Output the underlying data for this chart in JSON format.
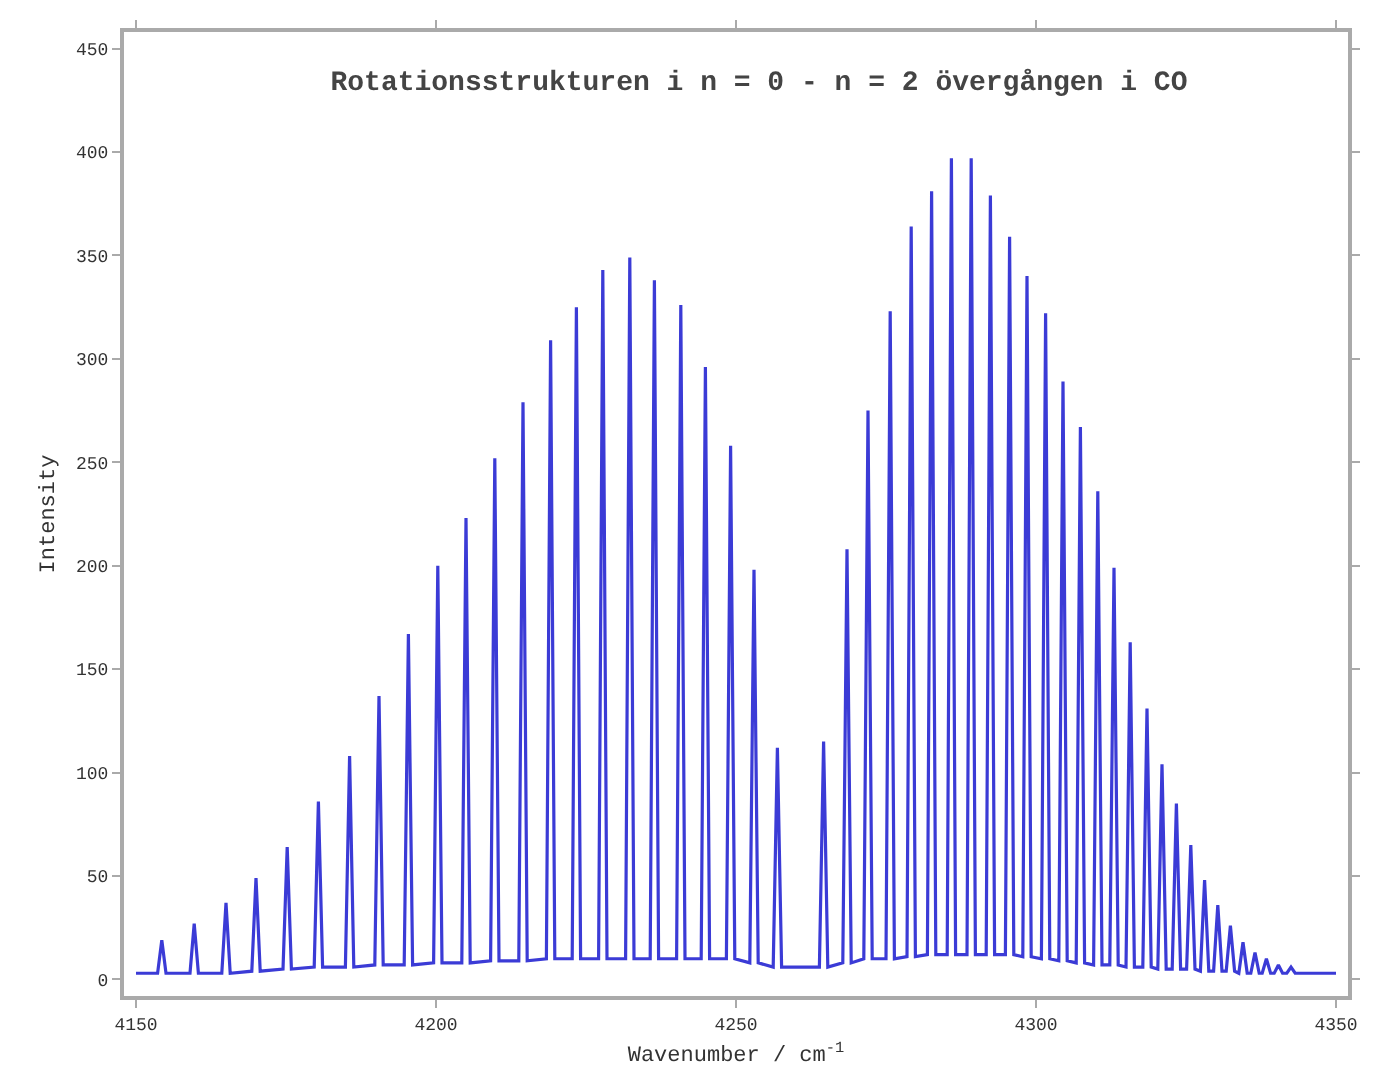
{
  "chart_data": {
    "type": "line",
    "title": "Rotationsstrukturen i n = 0 - n = 2 övergången i CO",
    "xlabel": "Wavenumber / cm$^{-1}$",
    "ylabel": "Intensity",
    "x": [
      4150,
      4153.6,
      4154.3,
      4155.0,
      4159.0,
      4159.7,
      4160.4,
      4164.3,
      4165.0,
      4165.7,
      4169.3,
      4170.0,
      4170.7,
      4174.5,
      4175.2,
      4175.9,
      4179.7,
      4180.4,
      4181.1,
      4184.9,
      4185.6,
      4186.3,
      4189.8,
      4190.5,
      4191.2,
      4194.7,
      4195.4,
      4196.1,
      4199.6,
      4200.3,
      4201.0,
      4204.3,
      4205.0,
      4205.7,
      4209.1,
      4209.8,
      4210.5,
      4213.8,
      4214.5,
      4215.2,
      4218.4,
      4219.1,
      4219.8,
      4222.7,
      4223.4,
      4224.1,
      4227.1,
      4227.8,
      4228.5,
      4231.6,
      4232.3,
      4233.0,
      4235.7,
      4236.4,
      4237.1,
      4240.1,
      4240.8,
      4241.5,
      4244.2,
      4244.9,
      4245.6,
      4248.4,
      4249.1,
      4249.8,
      4252.3,
      4253.0,
      4253.7,
      4256.2,
      4256.9,
      4257.6,
      4263.9,
      4264.6,
      4265.3,
      4267.8,
      4268.5,
      4269.2,
      4271.3,
      4272.0,
      4272.7,
      4275.0,
      4275.7,
      4276.4,
      4278.5,
      4279.2,
      4279.9,
      4281.9,
      4282.6,
      4283.3,
      4285.2,
      4285.9,
      4286.6,
      4288.5,
      4289.2,
      4289.9,
      4291.7,
      4292.4,
      4293.1,
      4294.9,
      4295.6,
      4296.3,
      4297.8,
      4298.5,
      4299.2,
      4300.9,
      4301.6,
      4302.3,
      4303.8,
      4304.5,
      4305.2,
      4306.7,
      4307.4,
      4308.1,
      4309.6,
      4310.3,
      4311.0,
      4312.3,
      4313.0,
      4313.7,
      4315.0,
      4315.7,
      4316.4,
      4317.8,
      4318.5,
      4319.2,
      4320.3,
      4321.0,
      4321.7,
      4322.7,
      4323.4,
      4324.1,
      4325.1,
      4325.8,
      4326.5,
      4327.4,
      4328.1,
      4328.8,
      4329.6,
      4330.3,
      4331.0,
      4331.7,
      4332.4,
      4333.1,
      4333.8,
      4334.5,
      4335.2,
      4335.8,
      4336.5,
      4337.2,
      4337.7,
      4338.4,
      4339.1,
      4339.7,
      4340.4,
      4341.1,
      4341.8,
      4342.5,
      4343.2,
      4350
    ],
    "series": [
      {
        "color": "#3b3bd6",
        "values": [
          3,
          3,
          19,
          3,
          3,
          27,
          3,
          3,
          37,
          3,
          4,
          49,
          4,
          5,
          64,
          5,
          6,
          86,
          6,
          6,
          108,
          6,
          7,
          137,
          7,
          7,
          167,
          7,
          8,
          200,
          8,
          8,
          223,
          8,
          9,
          252,
          9,
          9,
          279,
          9,
          10,
          309,
          10,
          10,
          325,
          10,
          10,
          343,
          10,
          10,
          349,
          10,
          10,
          338,
          10,
          10,
          326,
          10,
          10,
          296,
          10,
          10,
          258,
          10,
          8,
          198,
          8,
          6,
          112,
          6,
          6,
          115,
          6,
          8,
          208,
          8,
          10,
          275,
          10,
          10,
          323,
          10,
          11,
          364,
          11,
          12,
          381,
          12,
          12,
          397,
          12,
          12,
          397,
          12,
          12,
          379,
          12,
          12,
          359,
          12,
          11,
          340,
          11,
          10,
          322,
          10,
          9,
          289,
          9,
          8,
          267,
          8,
          7,
          236,
          7,
          7,
          199,
          7,
          6,
          163,
          6,
          6,
          131,
          6,
          5,
          104,
          5,
          5,
          85,
          5,
          5,
          65,
          5,
          4,
          48,
          4,
          4,
          36,
          4,
          4,
          26,
          4,
          3,
          18,
          3,
          3,
          13,
          3,
          3,
          10,
          3,
          3,
          7,
          3,
          3,
          6,
          3,
          3
        ]
      }
    ],
    "xlim": [
      4148,
      4352
    ],
    "ylim": [
      -8,
      458
    ],
    "xticks": [
      4150,
      4200,
      4250,
      4300,
      4350
    ],
    "yticks": [
      0,
      50,
      100,
      150,
      200,
      250,
      300,
      350,
      400,
      450
    ]
  }
}
